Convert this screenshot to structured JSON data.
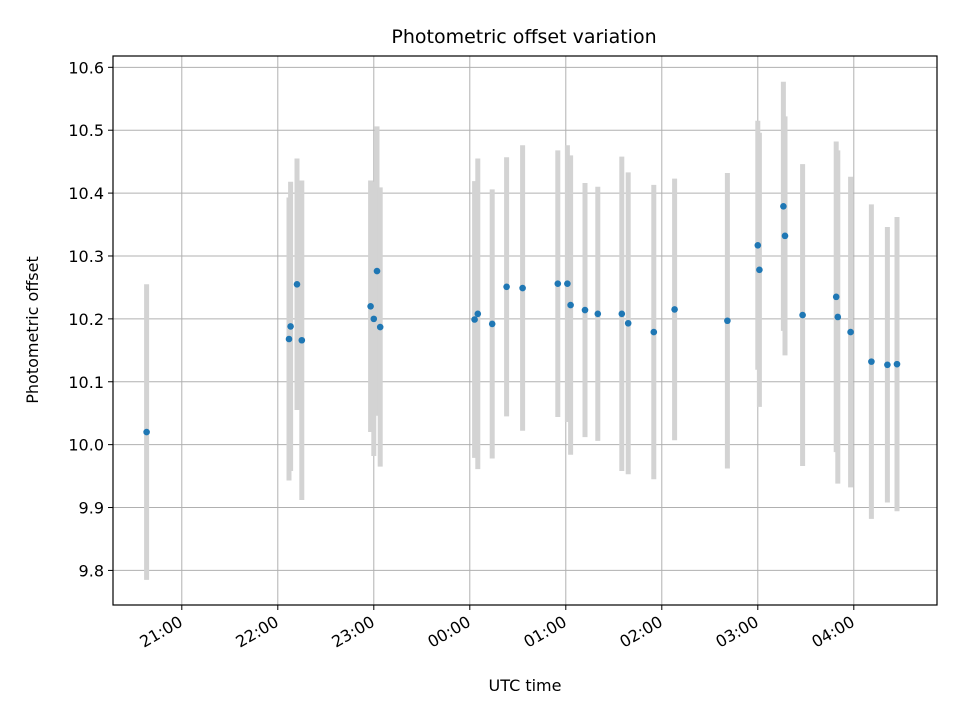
{
  "chart_data": {
    "type": "scatter",
    "title": "Photometric offset variation",
    "xlabel": "UTC time",
    "ylabel": "Photometric offset",
    "x_is_time": true,
    "xlim": [
      "20:17",
      "04:52"
    ],
    "ylim": [
      9.745,
      10.618
    ],
    "xticks": [
      "21:00",
      "22:00",
      "23:00",
      "00:00",
      "01:00",
      "02:00",
      "03:00",
      "04:00"
    ],
    "yticks": [
      9.8,
      9.9,
      10.0,
      10.1,
      10.2,
      10.3,
      10.4,
      10.5,
      10.6
    ],
    "grid": true,
    "colors": {
      "point": "#1f77b4",
      "errorbar": "#d3d3d3",
      "grid": "#b0b0b0"
    },
    "points": [
      {
        "x": "20:38",
        "y": 10.02,
        "yerr": 0.235
      },
      {
        "x": "22:07",
        "y": 10.168,
        "yerr": 0.225
      },
      {
        "x": "22:08",
        "y": 10.188,
        "yerr": 0.23
      },
      {
        "x": "22:12",
        "y": 10.255,
        "yerr": 0.2
      },
      {
        "x": "22:15",
        "y": 10.166,
        "yerr": 0.254
      },
      {
        "x": "22:58",
        "y": 10.22,
        "yerr": 0.2
      },
      {
        "x": "23:00",
        "y": 10.2,
        "yerr": 0.218
      },
      {
        "x": "23:02",
        "y": 10.276,
        "yerr": 0.23
      },
      {
        "x": "23:04",
        "y": 10.187,
        "yerr": 0.222
      },
      {
        "x": "00:03",
        "y": 10.199,
        "yerr": 0.22
      },
      {
        "x": "00:05",
        "y": 10.208,
        "yerr": 0.247
      },
      {
        "x": "00:14",
        "y": 10.192,
        "yerr": 0.214
      },
      {
        "x": "00:23",
        "y": 10.251,
        "yerr": 0.206
      },
      {
        "x": "00:33",
        "y": 10.249,
        "yerr": 0.227
      },
      {
        "x": "00:55",
        "y": 10.256,
        "yerr": 0.212
      },
      {
        "x": "01:01",
        "y": 10.256,
        "yerr": 0.22
      },
      {
        "x": "01:03",
        "y": 10.222,
        "yerr": 0.238
      },
      {
        "x": "01:12",
        "y": 10.214,
        "yerr": 0.202
      },
      {
        "x": "01:20",
        "y": 10.208,
        "yerr": 0.202
      },
      {
        "x": "01:35",
        "y": 10.208,
        "yerr": 0.25
      },
      {
        "x": "01:39",
        "y": 10.193,
        "yerr": 0.24
      },
      {
        "x": "01:55",
        "y": 10.179,
        "yerr": 0.234
      },
      {
        "x": "02:08",
        "y": 10.215,
        "yerr": 0.208
      },
      {
        "x": "02:41",
        "y": 10.197,
        "yerr": 0.235
      },
      {
        "x": "03:00",
        "y": 10.317,
        "yerr": 0.198
      },
      {
        "x": "03:01",
        "y": 10.278,
        "yerr": 0.218
      },
      {
        "x": "03:16",
        "y": 10.379,
        "yerr": 0.198
      },
      {
        "x": "03:17",
        "y": 10.332,
        "yerr": 0.19
      },
      {
        "x": "03:28",
        "y": 10.206,
        "yerr": 0.24
      },
      {
        "x": "03:49",
        "y": 10.235,
        "yerr": 0.247
      },
      {
        "x": "03:50",
        "y": 10.203,
        "yerr": 0.265
      },
      {
        "x": "03:58",
        "y": 10.179,
        "yerr": 0.247
      },
      {
        "x": "04:11",
        "y": 10.132,
        "yerr": 0.25
      },
      {
        "x": "04:21",
        "y": 10.127,
        "yerr": 0.219
      },
      {
        "x": "04:27",
        "y": 10.128,
        "yerr": 0.234
      }
    ]
  }
}
